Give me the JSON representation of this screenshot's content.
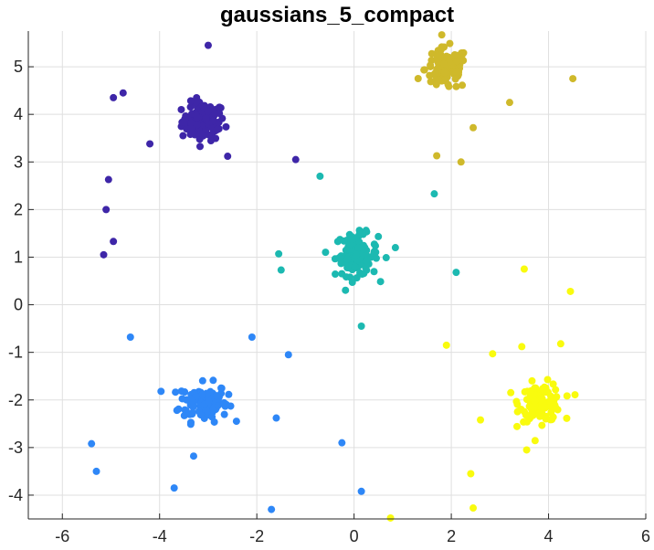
{
  "chart_data": {
    "type": "scatter",
    "title": "gaussians_5_compact",
    "xlabel": "",
    "ylabel": "",
    "xlim": [
      -6.7,
      6.0
    ],
    "ylim": [
      -4.5,
      5.75
    ],
    "xticks": [
      -6,
      -4,
      -2,
      0,
      2,
      4,
      6
    ],
    "yticks": [
      -4,
      -3,
      -2,
      -1,
      0,
      1,
      2,
      3,
      4,
      5
    ],
    "grid": true,
    "legend": "none",
    "series": [
      {
        "color": "#3e26a8",
        "cluster": {
          "center": [
            -3.1,
            3.85
          ],
          "spread": [
            0.22,
            0.2
          ],
          "count": 110
        },
        "outliers": [
          [
            -3.0,
            5.45
          ],
          [
            -4.75,
            4.45
          ],
          [
            -4.95,
            4.35
          ],
          [
            -4.2,
            3.38
          ],
          [
            -5.05,
            2.63
          ],
          [
            -5.1,
            2.0
          ],
          [
            -4.95,
            1.33
          ],
          [
            -5.15,
            1.05
          ],
          [
            -2.6,
            3.12
          ],
          [
            -1.2,
            3.05
          ]
        ]
      },
      {
        "color": "#2e87f7",
        "cluster": {
          "center": [
            -3.1,
            -2.05
          ],
          "spread": [
            0.25,
            0.2
          ],
          "count": 110
        },
        "outliers": [
          [
            -4.6,
            -0.68
          ],
          [
            -2.1,
            -0.68
          ],
          [
            -1.35,
            -1.05
          ],
          [
            -1.6,
            -2.38
          ],
          [
            -5.4,
            -2.92
          ],
          [
            -5.3,
            -3.5
          ],
          [
            -3.3,
            -3.18
          ],
          [
            -3.7,
            -3.85
          ],
          [
            -1.7,
            -4.3
          ],
          [
            -0.25,
            -2.9
          ],
          [
            0.15,
            -3.92
          ]
        ]
      },
      {
        "color": "#1cb9b1",
        "cluster": {
          "center": [
            0.05,
            1.05
          ],
          "spread": [
            0.22,
            0.22
          ],
          "count": 110
        },
        "outliers": [
          [
            -0.7,
            2.7
          ],
          [
            1.65,
            2.33
          ],
          [
            -1.55,
            1.07
          ],
          [
            -1.5,
            0.73
          ],
          [
            0.85,
            1.2
          ],
          [
            2.1,
            0.68
          ],
          [
            0.15,
            -0.45
          ]
        ]
      },
      {
        "color": "#cfb92b",
        "cluster": {
          "center": [
            1.9,
            4.95
          ],
          "spread": [
            0.22,
            0.22
          ],
          "count": 110
        },
        "outliers": [
          [
            4.5,
            4.75
          ],
          [
            3.2,
            4.25
          ],
          [
            2.45,
            3.72
          ],
          [
            1.7,
            3.13
          ],
          [
            2.2,
            3.0
          ]
        ]
      },
      {
        "color": "#f9fb0e",
        "cluster": {
          "center": [
            3.85,
            -2.05
          ],
          "spread": [
            0.22,
            0.2
          ],
          "count": 110
        },
        "outliers": [
          [
            3.5,
            0.75
          ],
          [
            4.45,
            0.28
          ],
          [
            1.9,
            -0.85
          ],
          [
            2.85,
            -1.03
          ],
          [
            3.45,
            -0.88
          ],
          [
            4.25,
            -0.82
          ],
          [
            2.6,
            -2.42
          ],
          [
            3.55,
            -3.05
          ],
          [
            2.4,
            -3.55
          ],
          [
            2.45,
            -4.27
          ],
          [
            0.75,
            -4.48
          ]
        ]
      }
    ]
  }
}
